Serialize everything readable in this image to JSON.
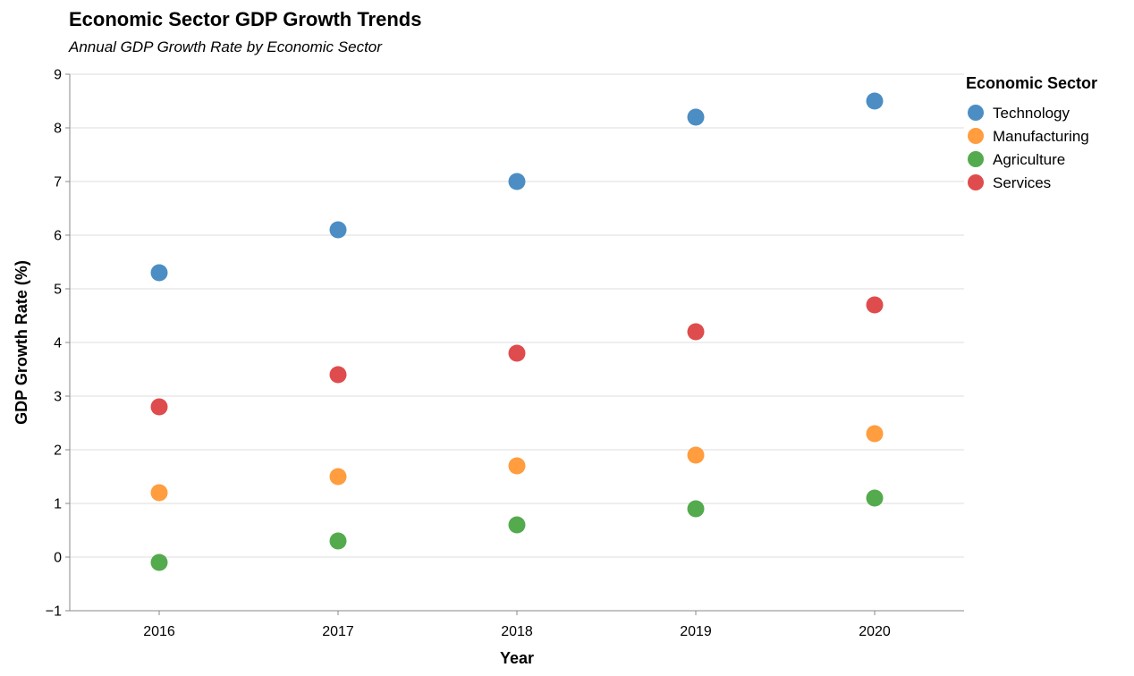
{
  "chart_data": {
    "type": "scatter",
    "title": "Economic Sector GDP Growth Trends",
    "subtitle": "Annual GDP Growth Rate by Economic Sector",
    "xlabel": "Year",
    "ylabel": "GDP Growth Rate (%)",
    "x": [
      "2016",
      "2017",
      "2018",
      "2019",
      "2020"
    ],
    "ylim": [
      -1,
      9
    ],
    "yticks": [
      -1,
      0,
      1,
      2,
      3,
      4,
      5,
      6,
      7,
      8,
      9
    ],
    "grid": true,
    "legend": {
      "title": "Economic Sector",
      "placement": "top-right"
    },
    "series": [
      {
        "name": "Technology",
        "color": "#4c8ec4",
        "values": [
          5.3,
          6.1,
          7.0,
          8.2,
          8.5
        ]
      },
      {
        "name": "Manufacturing",
        "color": "#ff9d3f",
        "values": [
          1.2,
          1.5,
          1.7,
          1.9,
          2.3
        ]
      },
      {
        "name": "Agriculture",
        "color": "#54ab4e",
        "values": [
          -0.1,
          0.3,
          0.6,
          0.9,
          1.1
        ]
      },
      {
        "name": "Services",
        "color": "#df4c4d",
        "values": [
          2.8,
          3.4,
          3.8,
          4.2,
          4.7
        ]
      }
    ]
  }
}
